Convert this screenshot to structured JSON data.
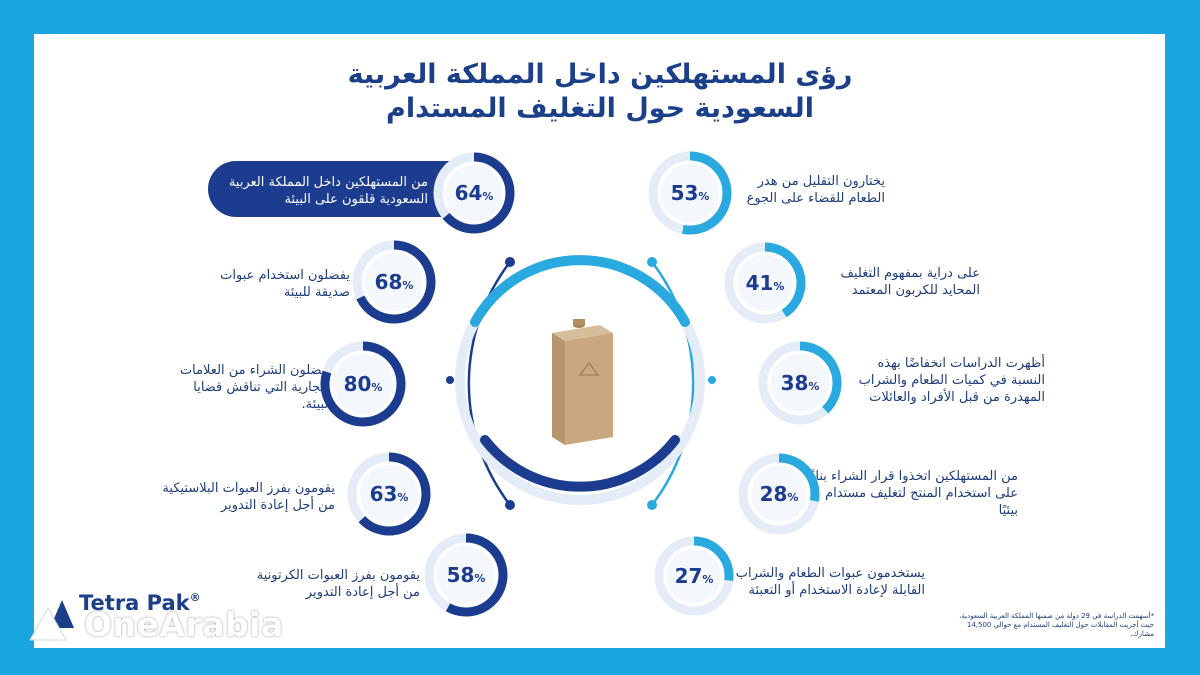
{
  "title": {
    "line1": "رؤى المستهلكين داخل المملكة العربية",
    "line2": "السعودية حول التغليف المستدام"
  },
  "stats_left": [
    {
      "value": "64",
      "text": "من المستهلكين داخل المملكة العربية السعودية قلقون على البيئة",
      "highlighted": true,
      "fraction": 0.64
    },
    {
      "value": "68",
      "text": "يفضلون استخدام عبوات صديقة للبيئة",
      "highlighted": false,
      "fraction": 0.68
    },
    {
      "value": "80",
      "text": "يفضلون الشراء من العلامات التجارية التي تناقش قضايا البيئة.",
      "highlighted": false,
      "fraction": 0.8
    },
    {
      "value": "63",
      "text": "يقومون بفرز العبوات البلاستيكية من أجل إعادة التدوير",
      "highlighted": false,
      "fraction": 0.63
    },
    {
      "value": "58",
      "text": "يقومون بفرز العبوات الكرتونية من أجل إعادة التدوير",
      "highlighted": false,
      "fraction": 0.58
    }
  ],
  "stats_right": [
    {
      "value": "53",
      "text": "يختارون التقليل من هدر الطعام للقضاء على الجوع",
      "fraction": 0.53
    },
    {
      "value": "41",
      "text": "على دراية بمفهوم التغليف المحايد للكربون المعتمد",
      "fraction": 0.41
    },
    {
      "value": "38",
      "text": "أظهرت الدراسات انخفاضًا بهذه النسبة في كميات الطعام والشراب المهدرة من قبل الأفراد والعائلات",
      "fraction": 0.38
    },
    {
      "value": "28",
      "text": "من المستهلكين اتخذوا قرار الشراء بناءً على استخدام المنتج لتغليف مستدام بيئيًا",
      "fraction": 0.28
    },
    {
      "value": "27",
      "text": "يستخدمون عبوات الطعام والشراب القابلة لإعادة الاستخدام أو التعبئة",
      "fraction": 0.27
    }
  ],
  "percent_sign": "%",
  "footnote": "*أسهمت الدراسة في 29 دولة من ضمنها المملكة العربية السعودية، حيث أجريت المقابلات حول التغليف المستدام مع حوالي 14,500 مشارك.",
  "logo": {
    "name": "Tetra Pak",
    "reg": "®"
  },
  "watermark": "OneArabia",
  "colors": {
    "background": "#1aa6de",
    "navy": "#1c3d8f",
    "light_blue": "#2aa8e0",
    "ring_track": "#e4ecf7"
  }
}
